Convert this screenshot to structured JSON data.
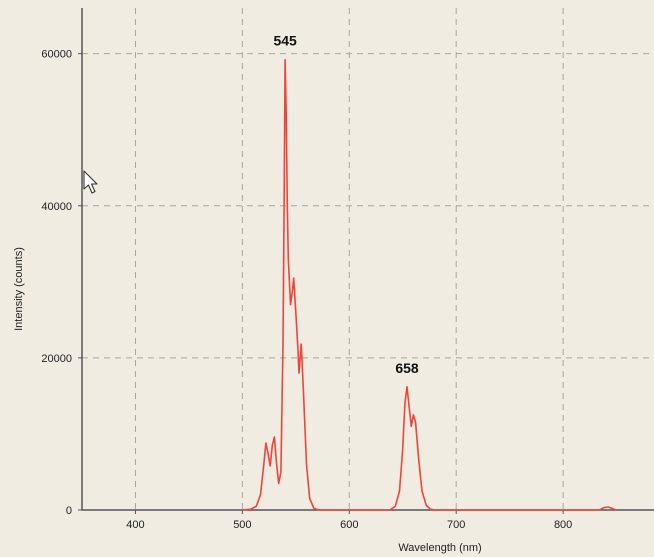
{
  "chart_data": {
    "type": "line",
    "title": "",
    "xlabel": "Wavelength (nm)",
    "ylabel": "Intensity (counts)",
    "xlim": [
      350,
      885
    ],
    "ylim": [
      0,
      66000
    ],
    "x_ticks": [
      400,
      500,
      600,
      700,
      800
    ],
    "y_ticks": [
      0,
      20000,
      40000,
      60000
    ],
    "grid": true,
    "legend": "none",
    "line_color": "#f0443a",
    "annotations": [
      {
        "text": "545",
        "x": 540,
        "y": 59200
      },
      {
        "text": "658",
        "x": 654,
        "y": 16200
      }
    ],
    "series": [
      {
        "values": [
          [
            500,
            0
          ],
          [
            508,
            100
          ],
          [
            513,
            500
          ],
          [
            517,
            2000
          ],
          [
            520,
            6000
          ],
          [
            522,
            8800
          ],
          [
            524,
            7500
          ],
          [
            526,
            5800
          ],
          [
            528,
            8500
          ],
          [
            530,
            9600
          ],
          [
            532,
            6000
          ],
          [
            534,
            3500
          ],
          [
            536,
            5000
          ],
          [
            538,
            22000
          ],
          [
            539,
            40000
          ],
          [
            540,
            59200
          ],
          [
            541,
            52000
          ],
          [
            542,
            40000
          ],
          [
            543,
            33000
          ],
          [
            545,
            27000
          ],
          [
            547,
            29000
          ],
          [
            548,
            30500
          ],
          [
            550,
            26000
          ],
          [
            552,
            21000
          ],
          [
            553,
            18000
          ],
          [
            555,
            21800
          ],
          [
            557,
            16000
          ],
          [
            560,
            6000
          ],
          [
            563,
            1500
          ],
          [
            567,
            200
          ],
          [
            572,
            0
          ],
          [
            638,
            0
          ],
          [
            643,
            500
          ],
          [
            647,
            2500
          ],
          [
            650,
            8000
          ],
          [
            652,
            14000
          ],
          [
            654,
            16200
          ],
          [
            656,
            13500
          ],
          [
            658,
            11000
          ],
          [
            660,
            12500
          ],
          [
            662,
            11500
          ],
          [
            665,
            6500
          ],
          [
            668,
            2500
          ],
          [
            672,
            600
          ],
          [
            676,
            100
          ],
          [
            680,
            0
          ],
          [
            834,
            0
          ],
          [
            838,
            300
          ],
          [
            842,
            400
          ],
          [
            846,
            200
          ],
          [
            850,
            0
          ]
        ]
      }
    ]
  }
}
